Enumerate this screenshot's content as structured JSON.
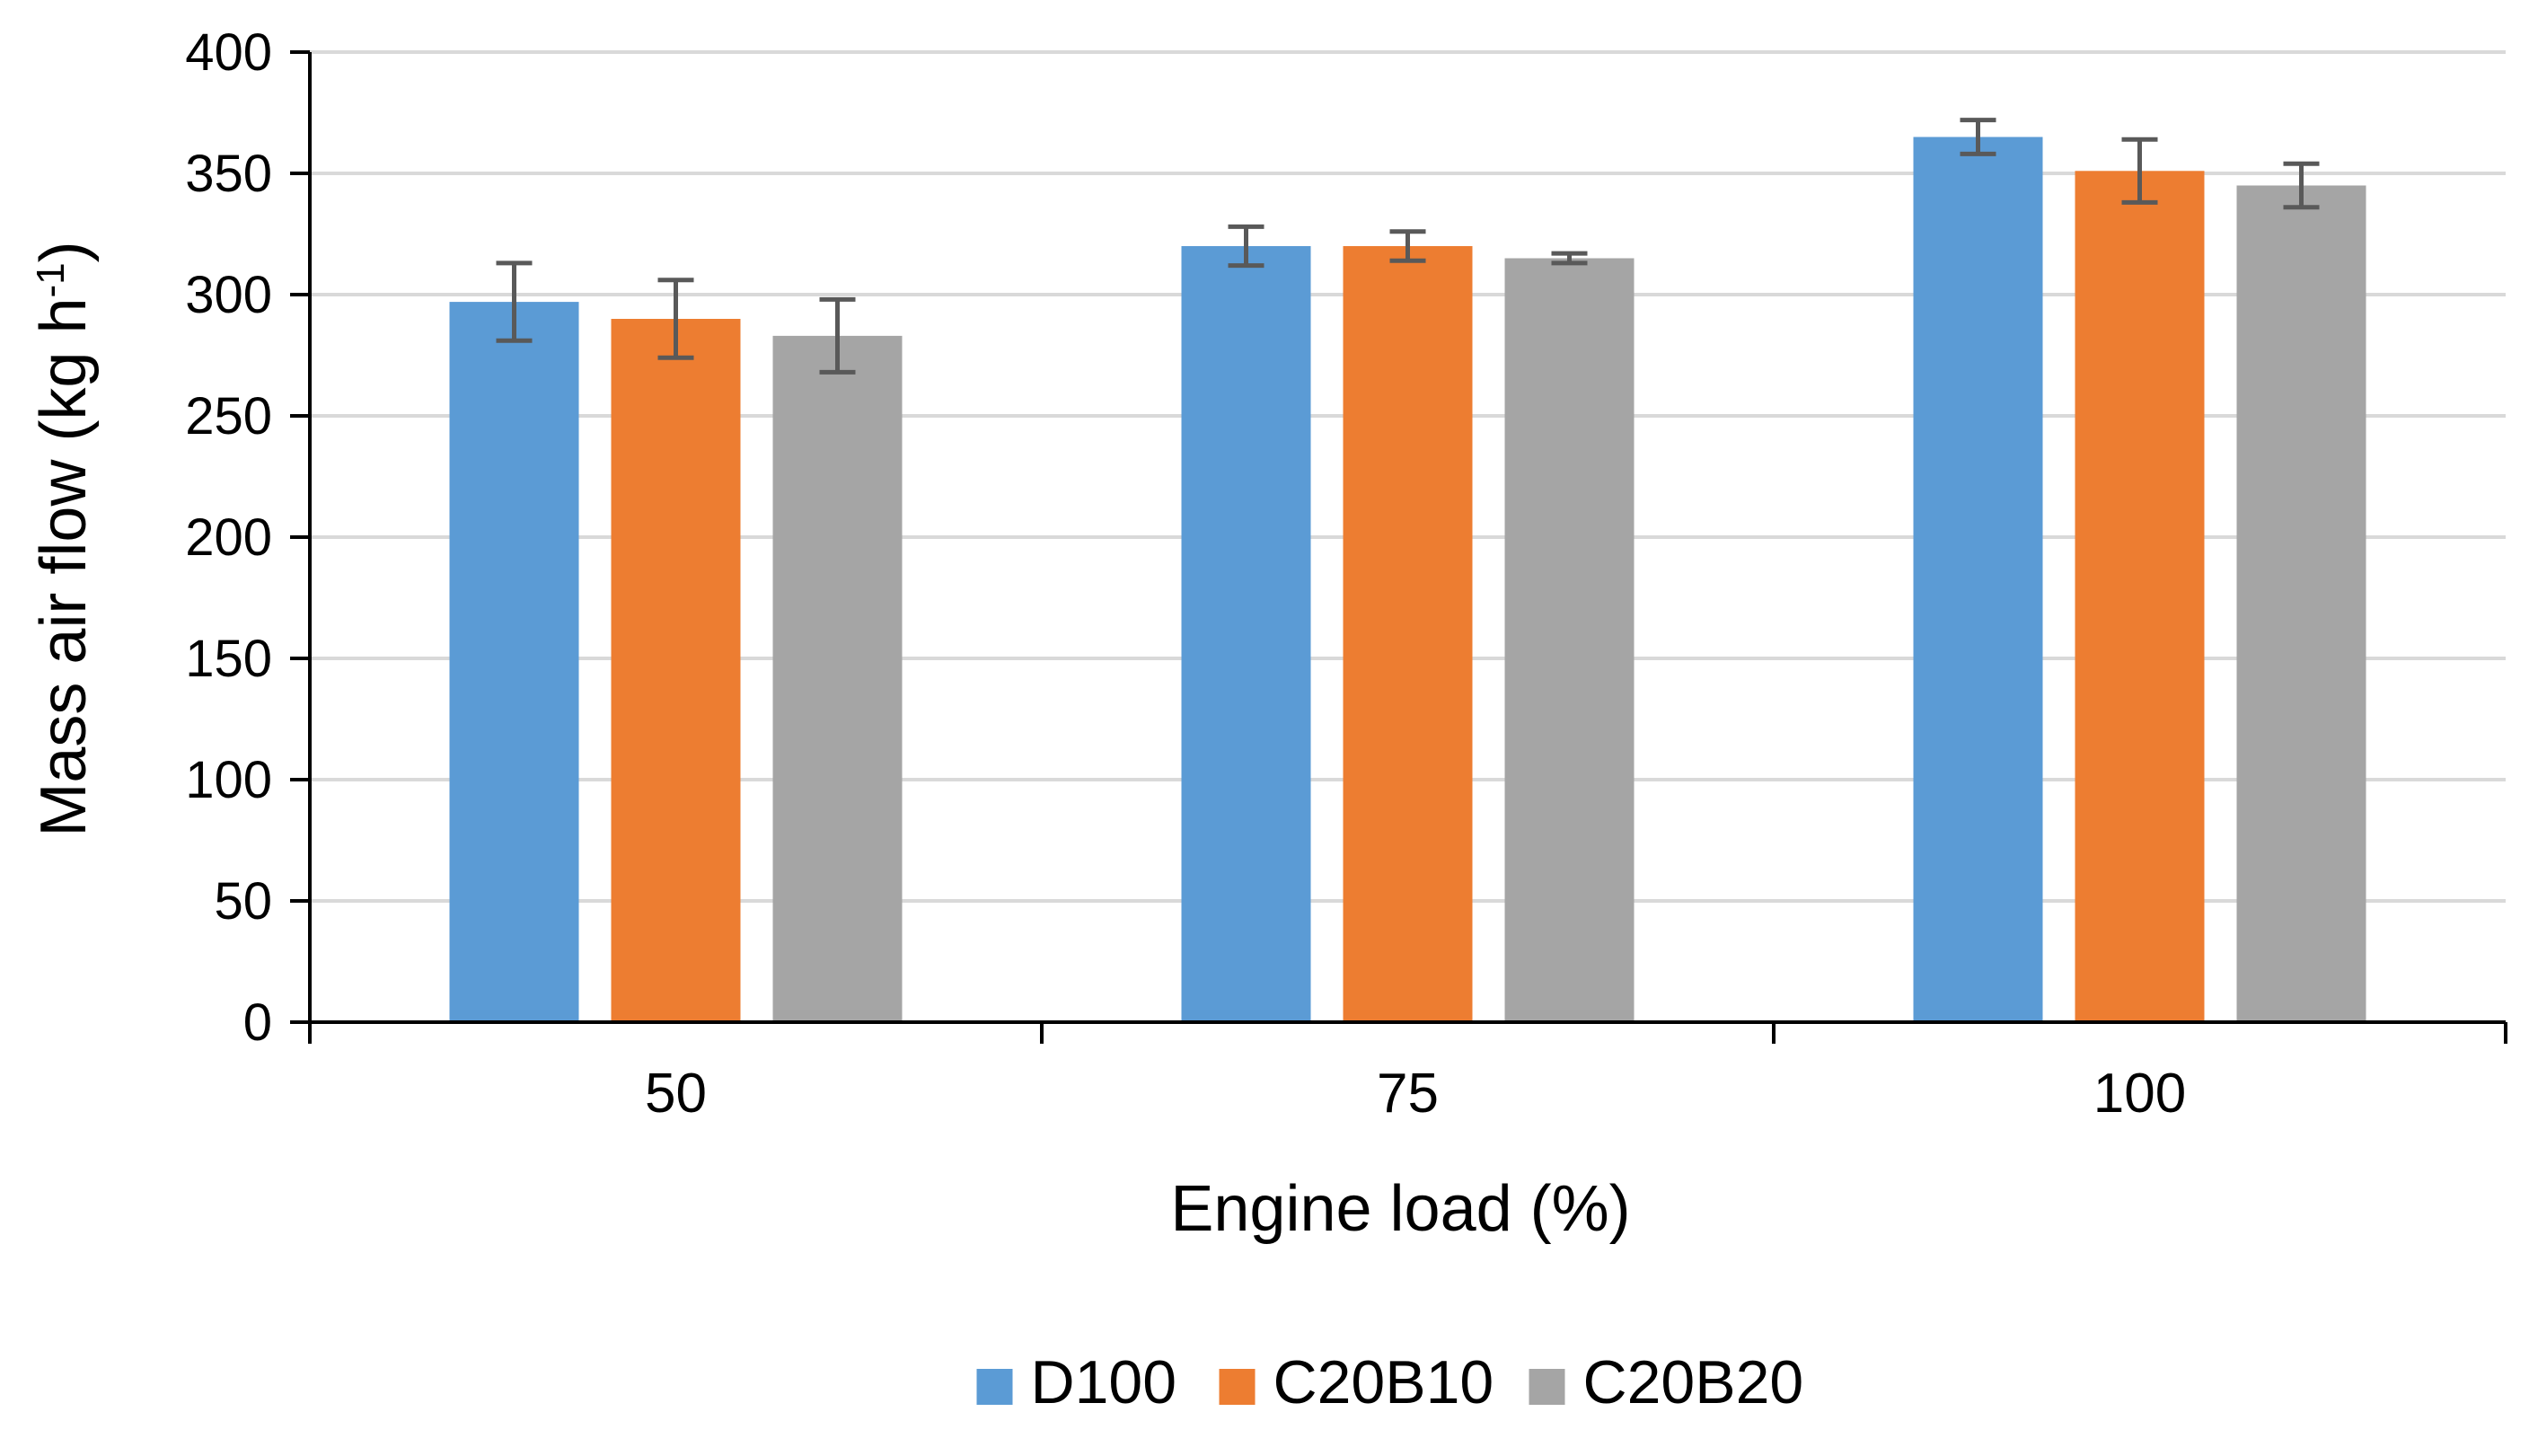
{
  "chart_data": {
    "type": "bar",
    "title": "",
    "xlabel": "Engine load (%)",
    "ylabel": "Mass air flow (kg h",
    "ylabel_superscript": "-1",
    "ylabel_suffix": ")",
    "categories": [
      "50",
      "75",
      "100"
    ],
    "series": [
      {
        "name": "D100",
        "color": "#5B9BD5",
        "values": [
          297,
          320,
          365
        ],
        "errors": [
          16,
          8,
          7
        ]
      },
      {
        "name": "C20B10",
        "color": "#ED7D31",
        "values": [
          290,
          320,
          351
        ],
        "errors": [
          16,
          6,
          13
        ]
      },
      {
        "name": "C20B20",
        "color": "#A5A5A5",
        "values": [
          283,
          315,
          345
        ],
        "errors": [
          15,
          2,
          9
        ]
      }
    ],
    "ylim": [
      0,
      400
    ],
    "yticks": [
      "0",
      "50",
      "100",
      "150",
      "200",
      "250",
      "300",
      "350",
      "400"
    ],
    "grid": true,
    "legend_position": "bottom",
    "gridline_color": "#D9D9D9",
    "axis_color": "#000000",
    "errorbar_color": "#595959"
  }
}
